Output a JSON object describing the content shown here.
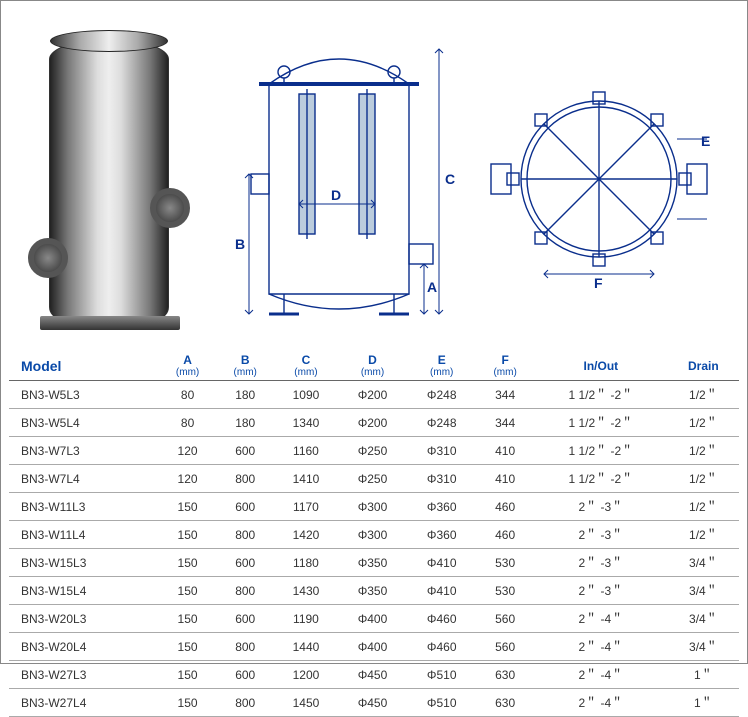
{
  "colors": {
    "blueprint": "#0a2e8c",
    "header_text": "#0a4aa8",
    "row_border": "#aaaaaa",
    "header_border": "#666666",
    "body_text": "#333333"
  },
  "dim_labels": {
    "A": "A",
    "B": "B",
    "C": "C",
    "D": "D",
    "E": "E",
    "F": "F"
  },
  "table": {
    "columns": [
      {
        "key": "model",
        "label": "Model",
        "unit": ""
      },
      {
        "key": "A",
        "label": "A",
        "unit": "(mm)"
      },
      {
        "key": "B",
        "label": "B",
        "unit": "(mm)"
      },
      {
        "key": "C",
        "label": "C",
        "unit": "(mm)"
      },
      {
        "key": "D",
        "label": "D",
        "unit": "(mm)"
      },
      {
        "key": "E",
        "label": "E",
        "unit": "(mm)"
      },
      {
        "key": "F",
        "label": "F",
        "unit": "(mm)"
      },
      {
        "key": "inout",
        "label": "In/Out",
        "unit": ""
      },
      {
        "key": "drain",
        "label": "Drain",
        "unit": ""
      }
    ],
    "rows": [
      {
        "model": "BN3-W5L3",
        "A": "80",
        "B": "180",
        "C": "1090",
        "D": "Φ200",
        "E": "Φ248",
        "F": "344",
        "inout": "1 1/2＂ -2＂",
        "drain": "1/2＂"
      },
      {
        "model": "BN3-W5L4",
        "A": "80",
        "B": "180",
        "C": "1340",
        "D": "Φ200",
        "E": "Φ248",
        "F": "344",
        "inout": "1 1/2＂ -2＂",
        "drain": "1/2＂"
      },
      {
        "model": "BN3-W7L3",
        "A": "120",
        "B": "600",
        "C": "1160",
        "D": "Φ250",
        "E": "Φ310",
        "F": "410",
        "inout": "1 1/2＂ -2＂",
        "drain": "1/2＂"
      },
      {
        "model": "BN3-W7L4",
        "A": "120",
        "B": "800",
        "C": "1410",
        "D": "Φ250",
        "E": "Φ310",
        "F": "410",
        "inout": "1 1/2＂ -2＂",
        "drain": "1/2＂"
      },
      {
        "model": "BN3-W11L3",
        "A": "150",
        "B": "600",
        "C": "1170",
        "D": "Φ300",
        "E": "Φ360",
        "F": "460",
        "inout": "2＂ -3＂",
        "drain": "1/2＂"
      },
      {
        "model": "BN3-W11L4",
        "A": "150",
        "B": "800",
        "C": "1420",
        "D": "Φ300",
        "E": "Φ360",
        "F": "460",
        "inout": "2＂ -3＂",
        "drain": "1/2＂"
      },
      {
        "model": "BN3-W15L3",
        "A": "150",
        "B": "600",
        "C": "1180",
        "D": "Φ350",
        "E": "Φ410",
        "F": "530",
        "inout": "2＂ -3＂",
        "drain": "3/4＂"
      },
      {
        "model": "BN3-W15L4",
        "A": "150",
        "B": "800",
        "C": "1430",
        "D": "Φ350",
        "E": "Φ410",
        "F": "530",
        "inout": "2＂ -3＂",
        "drain": "3/4＂"
      },
      {
        "model": "BN3-W20L3",
        "A": "150",
        "B": "600",
        "C": "1190",
        "D": "Φ400",
        "E": "Φ460",
        "F": "560",
        "inout": "2＂ -4＂",
        "drain": "3/4＂"
      },
      {
        "model": "BN3-W20L4",
        "A": "150",
        "B": "800",
        "C": "1440",
        "D": "Φ400",
        "E": "Φ460",
        "F": "560",
        "inout": "2＂ -4＂",
        "drain": "3/4＂"
      },
      {
        "model": "BN3-W27L3",
        "A": "150",
        "B": "600",
        "C": "1200",
        "D": "Φ450",
        "E": "Φ510",
        "F": "630",
        "inout": "2＂ -4＂",
        "drain": "1＂"
      },
      {
        "model": "BN3-W27L4",
        "A": "150",
        "B": "800",
        "C": "1450",
        "D": "Φ450",
        "E": "Φ510",
        "F": "630",
        "inout": "2＂ -4＂",
        "drain": "1＂"
      }
    ]
  }
}
